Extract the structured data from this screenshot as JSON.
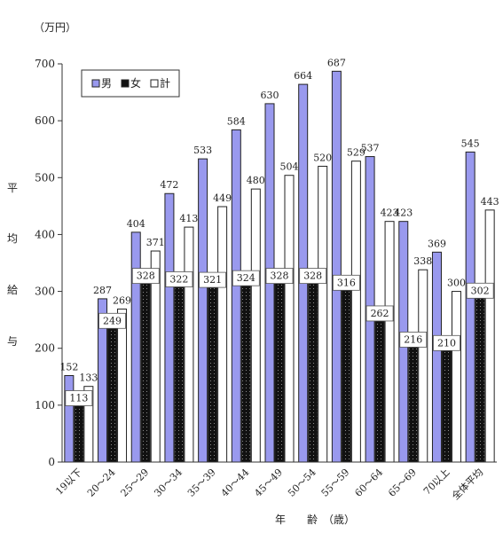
{
  "chart_data": {
    "type": "bar",
    "unit_label": "（万円）",
    "ylabel_chars": [
      "平",
      "均",
      "給",
      "与"
    ],
    "xlabel": "年　　齢　（歳）",
    "categories": [
      "19以下",
      "20～24",
      "25～29",
      "30～34",
      "35～39",
      "40～44",
      "45～49",
      "50～54",
      "55～59",
      "60～64",
      "65～69",
      "70以上",
      "全体平均"
    ],
    "series": [
      {
        "name": "男",
        "color": "#9999ee",
        "values": [
          152,
          287,
          404,
          472,
          533,
          584,
          630,
          664,
          687,
          537,
          423,
          369,
          545
        ]
      },
      {
        "name": "女",
        "color": "#111111",
        "values": [
          113,
          249,
          328,
          322,
          321,
          324,
          328,
          328,
          316,
          262,
          216,
          210,
          302
        ]
      },
      {
        "name": "計",
        "color": "#ffffff",
        "values": [
          133,
          269,
          371,
          413,
          449,
          480,
          504,
          520,
          529,
          423,
          338,
          300,
          443
        ]
      }
    ],
    "ylim": [
      0,
      700
    ],
    "yticks": [
      0,
      100,
      200,
      300,
      400,
      500,
      600,
      700
    ],
    "legend_position": "top-left",
    "grid": false
  }
}
